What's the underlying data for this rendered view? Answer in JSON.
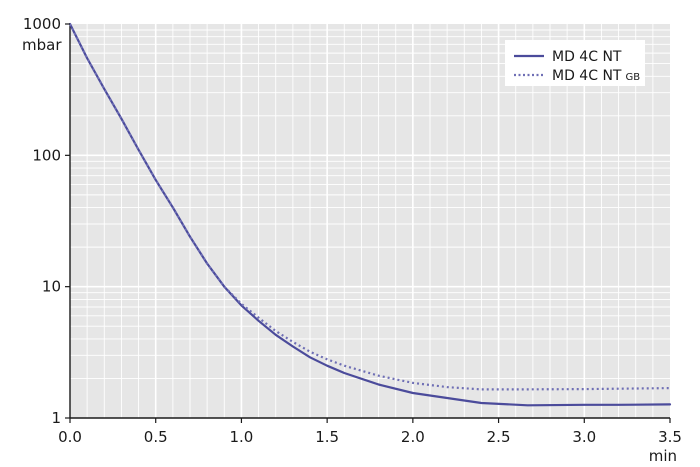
{
  "chart_data": {
    "type": "line",
    "x_unit": "min",
    "y_unit": "mbar",
    "y_scale": "log",
    "xlim": [
      0,
      3.5
    ],
    "ylim": [
      1,
      1000
    ],
    "x_ticks": [
      "0.0",
      "0.5",
      "1.0",
      "1.5",
      "2.0",
      "2.5",
      "3.0",
      "3.5"
    ],
    "y_ticks": [
      "1",
      "10",
      "100",
      "1000"
    ],
    "grid": true,
    "legend_position": "top-right",
    "series": [
      {
        "name": "MD 4C NT",
        "style": "solid",
        "color": "#4b4b9b",
        "x": [
          0.0,
          0.1,
          0.2,
          0.3,
          0.4,
          0.5,
          0.6,
          0.7,
          0.8,
          0.9,
          1.0,
          1.1,
          1.2,
          1.3,
          1.4,
          1.5,
          1.6,
          1.8,
          2.0,
          2.2,
          2.4,
          2.67,
          3.0,
          3.2,
          3.5
        ],
        "y": [
          1000,
          550,
          320,
          190,
          110,
          65,
          40,
          24,
          15,
          10,
          7.2,
          5.5,
          4.3,
          3.5,
          2.9,
          2.5,
          2.2,
          1.8,
          1.55,
          1.42,
          1.3,
          1.25,
          1.26,
          1.26,
          1.27
        ]
      },
      {
        "name": "MD 4C NT",
        "name_sub": "GB",
        "style": "dotted",
        "color": "#6f6fb5",
        "x": [
          0.0,
          0.1,
          0.2,
          0.3,
          0.4,
          0.5,
          0.6,
          0.7,
          0.8,
          0.9,
          1.0,
          1.1,
          1.2,
          1.3,
          1.4,
          1.5,
          1.6,
          1.8,
          2.0,
          2.2,
          2.4,
          2.6,
          3.0,
          3.2,
          3.5
        ],
        "y": [
          1000,
          550,
          320,
          190,
          110,
          65,
          40,
          24,
          15,
          10,
          7.4,
          5.8,
          4.6,
          3.8,
          3.2,
          2.8,
          2.5,
          2.1,
          1.85,
          1.72,
          1.65,
          1.65,
          1.66,
          1.67,
          1.69
        ]
      }
    ]
  }
}
